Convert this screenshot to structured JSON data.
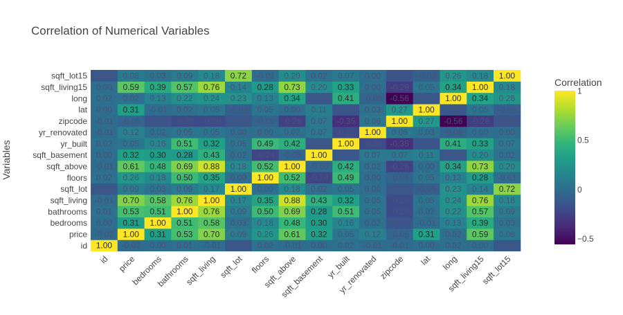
{
  "chart_data": {
    "type": "heatmap",
    "title": "Correlation of Numerical Variables",
    "xlabel": "",
    "ylabel": "Variables",
    "colorbar_title": "Correlation",
    "colorscale": "viridis",
    "zrange": [
      -0.56,
      1.0
    ],
    "colorbar_ticks": [
      1,
      0.5,
      0,
      -0.5
    ],
    "colorbar_tick_labels": [
      "1",
      "0.5",
      "0",
      "−0.5"
    ],
    "labels": [
      "id",
      "price",
      "bedrooms",
      "bathrooms",
      "sqft_living",
      "sqft_lot",
      "floors",
      "sqft_above",
      "sqft_basement",
      "yr_built",
      "yr_renovated",
      "zipcode",
      "lat",
      "long",
      "sqft_living15",
      "sqft_lot15"
    ],
    "matrix": [
      [
        1.0,
        -0.02,
        0.0,
        0.01,
        -0.01,
        -0.13,
        0.02,
        -0.01,
        -0.0,
        0.02,
        -0.01,
        -0.01,
        -0.0,
        0.02,
        -0.0,
        -0.14
      ],
      [
        -0.02,
        1.0,
        0.31,
        0.53,
        0.7,
        0.09,
        0.26,
        0.61,
        0.32,
        0.05,
        0.12,
        -0.05,
        0.31,
        0.02,
        0.59,
        0.08
      ],
      [
        0.0,
        0.31,
        1.0,
        0.51,
        0.58,
        0.03,
        0.18,
        0.48,
        0.3,
        0.16,
        0.02,
        -0.15,
        -0.01,
        0.13,
        0.39,
        0.03
      ],
      [
        0.01,
        0.53,
        0.51,
        1.0,
        0.76,
        0.09,
        0.5,
        0.69,
        0.28,
        0.51,
        0.05,
        -0.2,
        0.02,
        0.22,
        0.57,
        0.09
      ],
      [
        -0.01,
        0.7,
        0.58,
        0.76,
        1.0,
        0.17,
        0.35,
        0.88,
        0.43,
        0.32,
        0.05,
        -0.2,
        0.05,
        0.24,
        0.76,
        0.18
      ],
      [
        -0.13,
        0.09,
        0.03,
        0.09,
        0.17,
        1.0,
        -0.0,
        0.18,
        0.02,
        0.05,
        0.0,
        -0.13,
        -0.09,
        0.23,
        0.14,
        0.72
      ],
      [
        0.02,
        0.26,
        0.18,
        0.5,
        0.35,
        -0.0,
        1.0,
        0.52,
        -0.24,
        0.49,
        0.0,
        -0.06,
        0.05,
        0.13,
        0.28,
        -0.01
      ],
      [
        -0.01,
        0.61,
        0.48,
        0.69,
        0.88,
        0.18,
        0.52,
        1.0,
        -0.05,
        0.42,
        0.02,
        -0.26,
        -0.0,
        0.34,
        0.73,
        0.2
      ],
      [
        -0.0,
        0.32,
        0.3,
        0.28,
        0.43,
        0.02,
        -0.24,
        -0.05,
        1.0,
        -0.13,
        0.07,
        0.07,
        0.11,
        -0.14,
        0.2,
        0.02
      ],
      [
        0.02,
        0.05,
        0.16,
        0.51,
        0.32,
        0.05,
        0.49,
        0.42,
        -0.13,
        1.0,
        -0.2,
        -0.35,
        -0.15,
        0.41,
        0.33,
        0.07
      ],
      [
        -0.01,
        0.12,
        0.02,
        0.05,
        0.05,
        0.0,
        0.0,
        0.02,
        0.07,
        -0.2,
        1.0,
        0.06,
        0.03,
        -0.06,
        0.0,
        0.0
      ],
      [
        -0.01,
        -0.05,
        -0.15,
        -0.2,
        -0.2,
        -0.13,
        -0.06,
        -0.26,
        0.07,
        -0.35,
        0.06,
        1.0,
        0.27,
        -0.56,
        -0.28,
        -0.15
      ],
      [
        -0.0,
        0.31,
        -0.01,
        0.02,
        0.05,
        -0.09,
        0.05,
        -0.0,
        0.11,
        -0.15,
        0.03,
        0.27,
        1.0,
        -0.14,
        0.05,
        -0.09
      ],
      [
        0.02,
        0.02,
        0.13,
        0.22,
        0.24,
        0.23,
        0.13,
        0.34,
        -0.14,
        0.41,
        -0.06,
        -0.56,
        -0.14,
        1.0,
        0.34,
        0.26
      ],
      [
        -0.0,
        0.59,
        0.39,
        0.57,
        0.76,
        0.14,
        0.28,
        0.73,
        0.2,
        0.33,
        0.0,
        -0.28,
        0.05,
        0.34,
        1.0,
        0.18
      ],
      [
        -0.14,
        0.08,
        0.03,
        0.09,
        0.18,
        0.72,
        -0.01,
        0.2,
        0.02,
        0.07,
        0.0,
        -0.15,
        -0.09,
        0.26,
        0.18,
        1.0
      ]
    ]
  }
}
